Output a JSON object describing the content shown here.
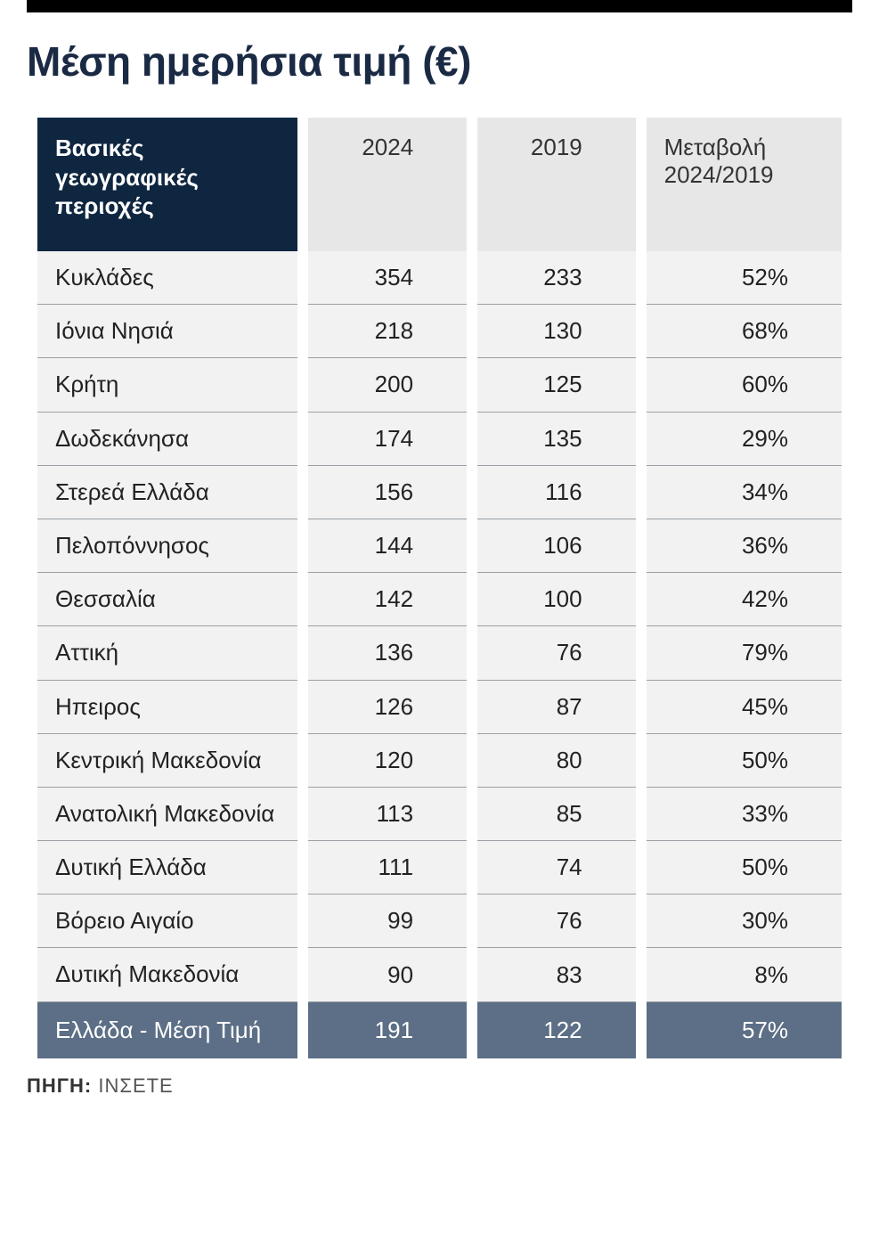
{
  "title": "Μέση ημερήσια τιμή (€)",
  "colors": {
    "top_bar": "#000000",
    "title_text": "#1a2a44",
    "header_region_bg": "#0f2640",
    "header_region_text": "#ffffff",
    "header_num_bg": "#e7e7e7",
    "header_num_text": "#333333",
    "row_bg": "#f2f2f2",
    "row_text": "#222222",
    "row_border": "#9aa0a6",
    "summary_bg": "#5c6f86",
    "summary_text": "#ffffff",
    "source_text": "#555555",
    "background": "#ffffff"
  },
  "typography": {
    "title_fontsize_pt": 34,
    "header_fontsize_pt": 20,
    "cell_fontsize_pt": 20,
    "source_fontsize_pt": 16,
    "font_family": "Arial"
  },
  "table": {
    "type": "table",
    "columns": [
      {
        "key": "region",
        "label": "Βασικές γεωγραφικές περιοχές",
        "align": "left",
        "width_pct": 28
      },
      {
        "key": "y2024",
        "label": "2024",
        "align": "right",
        "width_pct": 17
      },
      {
        "key": "y2019",
        "label": "2019",
        "align": "right",
        "width_pct": 17
      },
      {
        "key": "change",
        "label": "Μεταβολή 2024/2019",
        "align": "right",
        "width_pct": 21
      }
    ],
    "rows": [
      {
        "region": "Κυκλάδες",
        "y2024": "354",
        "y2019": "233",
        "change": "52%"
      },
      {
        "region": "Ιόνια Νησιά",
        "y2024": "218",
        "y2019": "130",
        "change": "68%"
      },
      {
        "region": "Κρήτη",
        "y2024": "200",
        "y2019": "125",
        "change": "60%"
      },
      {
        "region": "Δωδεκάνησα",
        "y2024": "174",
        "y2019": "135",
        "change": "29%"
      },
      {
        "region": "Στερεά Ελλάδα",
        "y2024": "156",
        "y2019": "116",
        "change": "34%"
      },
      {
        "region": "Πελοπόννησος",
        "y2024": "144",
        "y2019": "106",
        "change": "36%"
      },
      {
        "region": "Θεσσαλία",
        "y2024": "142",
        "y2019": "100",
        "change": "42%"
      },
      {
        "region": "Αττική",
        "y2024": "136",
        "y2019": "76",
        "change": "79%"
      },
      {
        "region": "Ηπειρος",
        "y2024": "126",
        "y2019": "87",
        "change": "45%"
      },
      {
        "region": "Κεντρική Μακεδονία",
        "y2024": "120",
        "y2019": "80",
        "change": "50%"
      },
      {
        "region": "Ανατολική Μακεδονία",
        "y2024": "113",
        "y2019": "85",
        "change": "33%"
      },
      {
        "region": "Δυτική Ελλάδα",
        "y2024": "111",
        "y2019": "74",
        "change": "50%"
      },
      {
        "region": "Βόρειο Αιγαίο",
        "y2024": "99",
        "y2019": "76",
        "change": "30%"
      },
      {
        "region": "Δυτική Μακεδονία",
        "y2024": "90",
        "y2019": "83",
        "change": "8%"
      }
    ],
    "summary": {
      "region": "Ελλάδα - Μέση Τιμή",
      "y2024": "191",
      "y2019": "122",
      "change": "57%"
    }
  },
  "source": {
    "label": "ΠΗΓΗ:",
    "value": "ΙΝΣΕΤΕ"
  }
}
